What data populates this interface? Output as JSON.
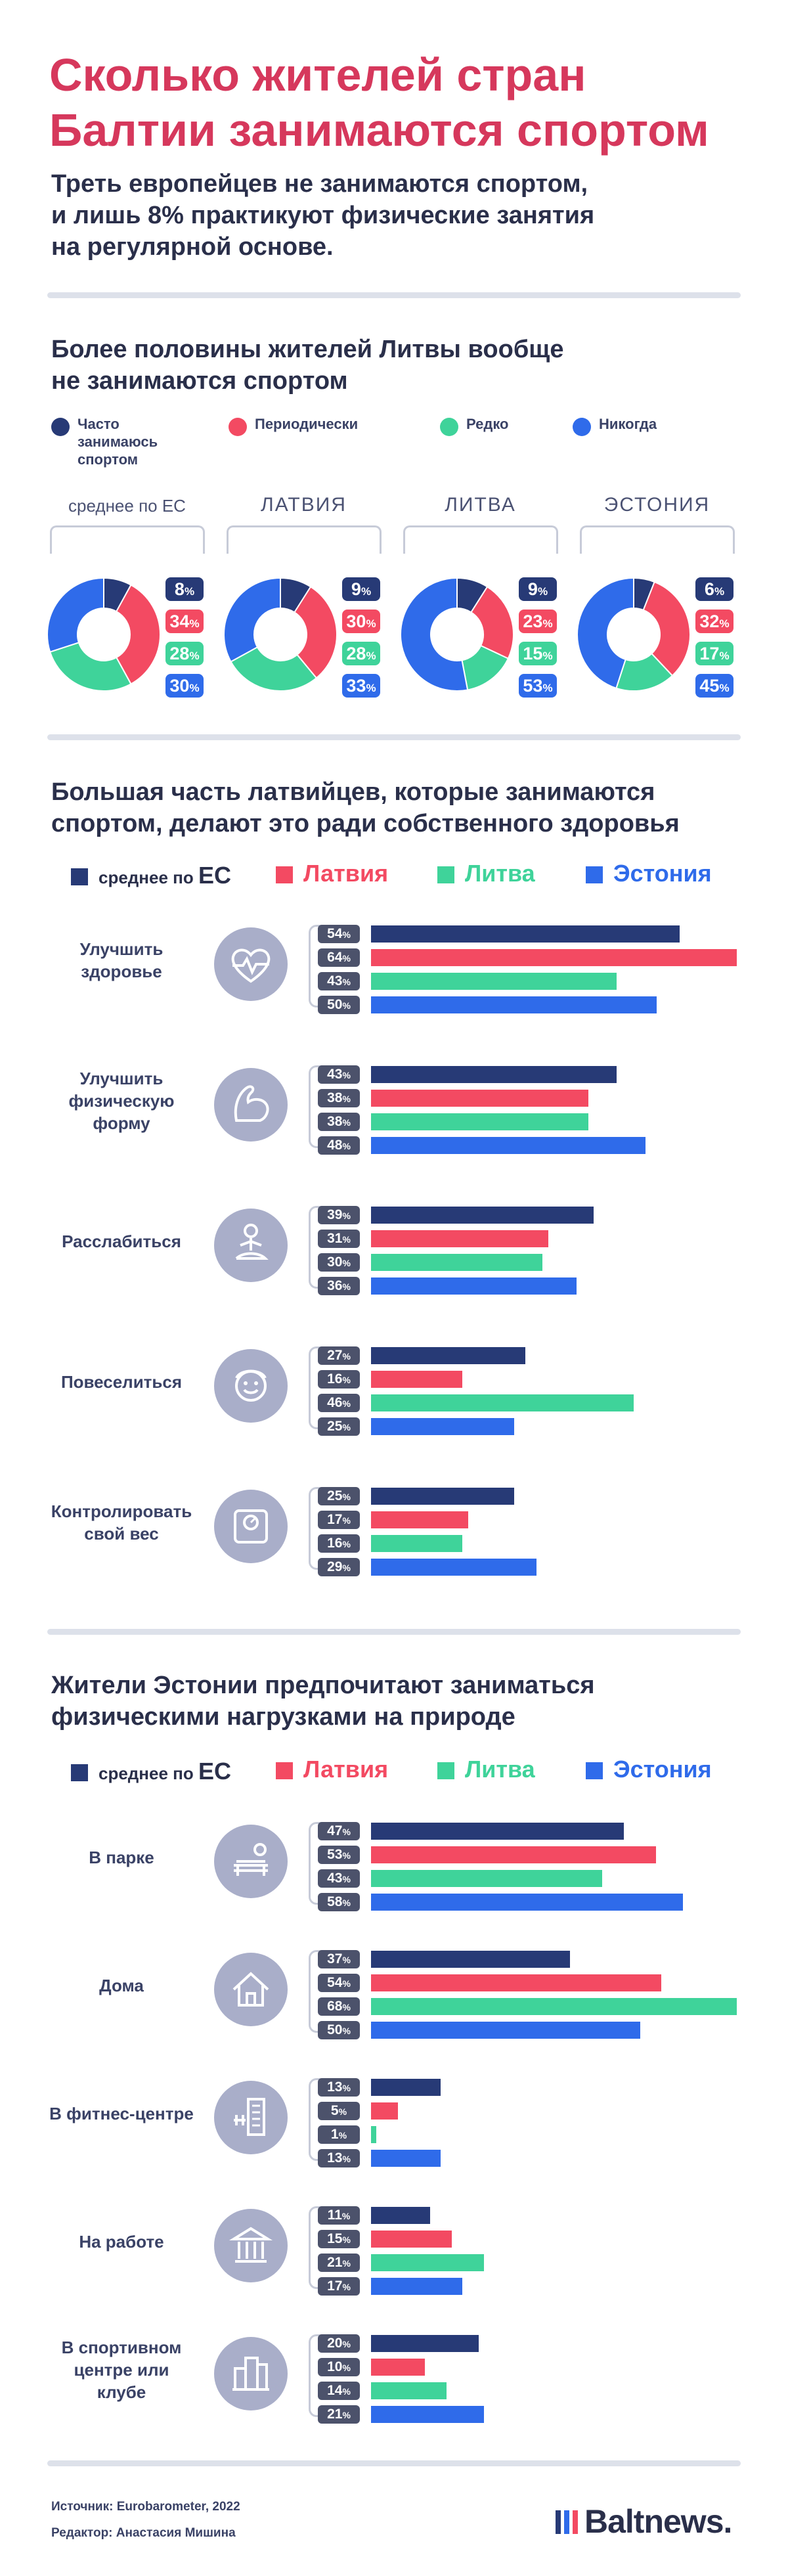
{
  "header": {
    "title_line1": "Сколько жителей стран",
    "title_line2": "Балтии занимаются спортом",
    "subtitle_line1": "Треть европейцев не занимаются спортом,",
    "subtitle_line2": "и лишь 8% практикуют физические занятия",
    "subtitle_line3": "на регулярной основе."
  },
  "colors": {
    "navy": "#273a76",
    "red": "#f34a62",
    "green": "#3fd39a",
    "blue": "#2f6bea",
    "title": "#d6385c",
    "tag": "#4c526b",
    "icon": "#a9aec9"
  },
  "section1": {
    "title_line1": "Более половины жителей Литвы вообще",
    "title_line2": "не занимаются спортом",
    "legend": [
      {
        "line1": "Часто",
        "line2": "занимаюсь",
        "line3": "спортом",
        "color": "#273a76"
      },
      {
        "line1": "Периодически",
        "color": "#f34a62"
      },
      {
        "line1": "Редко",
        "color": "#3fd39a"
      },
      {
        "line1": "Никогда",
        "color": "#2f6bea"
      }
    ],
    "regions": [
      "среднее по ЕС",
      "ЛАТВИЯ",
      "ЛИТВА",
      "ЭСТОНИЯ"
    ]
  },
  "section2": {
    "title_line1": "Большая часть латвийцев, которые занимаются",
    "title_line2": "спортом, делают это ради собственного здоровья",
    "legend": {
      "eu_prefix": "среднее по ",
      "eu_suffix": "ЕС",
      "lv": "Латвия",
      "lt": "Литва",
      "ee": "Эстония"
    },
    "categories": [
      {
        "line1": "Улучшить",
        "line2": "здоровье",
        "icon": "heart-icon"
      },
      {
        "line1": "Улучшить",
        "line2": "физическую",
        "line3": "форму",
        "icon": "flexed-arm-icon"
      },
      {
        "line1": "Расслабиться",
        "icon": "meditation-icon"
      },
      {
        "line1": "Повеселиться",
        "icon": "smiling-person-icon"
      },
      {
        "line1": "Контролировать",
        "line2": "свой вес",
        "icon": "scale-icon"
      }
    ]
  },
  "section3": {
    "title_line1": "Жители Эстонии предпочитают заниматься",
    "title_line2": "физическими нагрузками на природе",
    "legend": {
      "eu_prefix": "среднее по ",
      "eu_suffix": "ЕС",
      "lv": "Латвия",
      "lt": "Литва",
      "ee": "Эстония"
    },
    "categories": [
      {
        "line1": "В парке",
        "icon": "park-bench-icon"
      },
      {
        "line1": "Дома",
        "icon": "house-icon"
      },
      {
        "line1": "В фитнес-центре",
        "icon": "fitness-building-icon"
      },
      {
        "line1": "На работе",
        "icon": "office-building-icon"
      },
      {
        "line1": "В спортивном",
        "line2": "центре или",
        "line3": "клубе",
        "icon": "sports-center-icon"
      }
    ]
  },
  "chart_data": [
    {
      "type": "pie",
      "variant": "donut",
      "categories": [
        "Часто занимаюсь спортом",
        "Периодически",
        "Редко",
        "Никогда"
      ],
      "series": [
        {
          "name": "среднее по ЕС",
          "values": [
            8,
            34,
            28,
            30
          ]
        },
        {
          "name": "ЛАТВИЯ",
          "values": [
            9,
            30,
            28,
            33
          ]
        },
        {
          "name": "ЛИТВА",
          "values": [
            9,
            23,
            15,
            53
          ]
        },
        {
          "name": "ЭСТОНИЯ",
          "values": [
            6,
            32,
            17,
            45
          ]
        }
      ],
      "unit": "%"
    },
    {
      "type": "bar",
      "orientation": "horizontal",
      "categories": [
        "Улучшить здоровье",
        "Улучшить физическую форму",
        "Расслабиться",
        "Повеселиться",
        "Контролировать свой вес"
      ],
      "series": [
        {
          "name": "среднее по ЕС",
          "values": [
            54,
            43,
            39,
            27,
            25
          ]
        },
        {
          "name": "Латвия",
          "values": [
            64,
            38,
            31,
            16,
            17
          ]
        },
        {
          "name": "Литва",
          "values": [
            43,
            38,
            30,
            46,
            16
          ]
        },
        {
          "name": "Эстония",
          "values": [
            50,
            48,
            36,
            25,
            29
          ]
        }
      ],
      "unit": "%",
      "xlim": [
        0,
        64
      ]
    },
    {
      "type": "bar",
      "orientation": "horizontal",
      "categories": [
        "В парке",
        "Дома",
        "В фитнес-центре",
        "На работе",
        "В спортивном центре или клубе"
      ],
      "series": [
        {
          "name": "среднее по ЕС",
          "values": [
            47,
            37,
            13,
            11,
            20
          ]
        },
        {
          "name": "Латвия",
          "values": [
            53,
            54,
            5,
            15,
            10
          ]
        },
        {
          "name": "Литва",
          "values": [
            43,
            68,
            1,
            21,
            14
          ]
        },
        {
          "name": "Эстония",
          "values": [
            58,
            50,
            13,
            17,
            21
          ]
        }
      ],
      "unit": "%",
      "xlim": [
        0,
        68
      ]
    }
  ],
  "footer": {
    "source": "Источник: Eurobarometer, 2022",
    "editor": "Редактор: Анастасия Мишина",
    "logo": "Baltnews."
  }
}
